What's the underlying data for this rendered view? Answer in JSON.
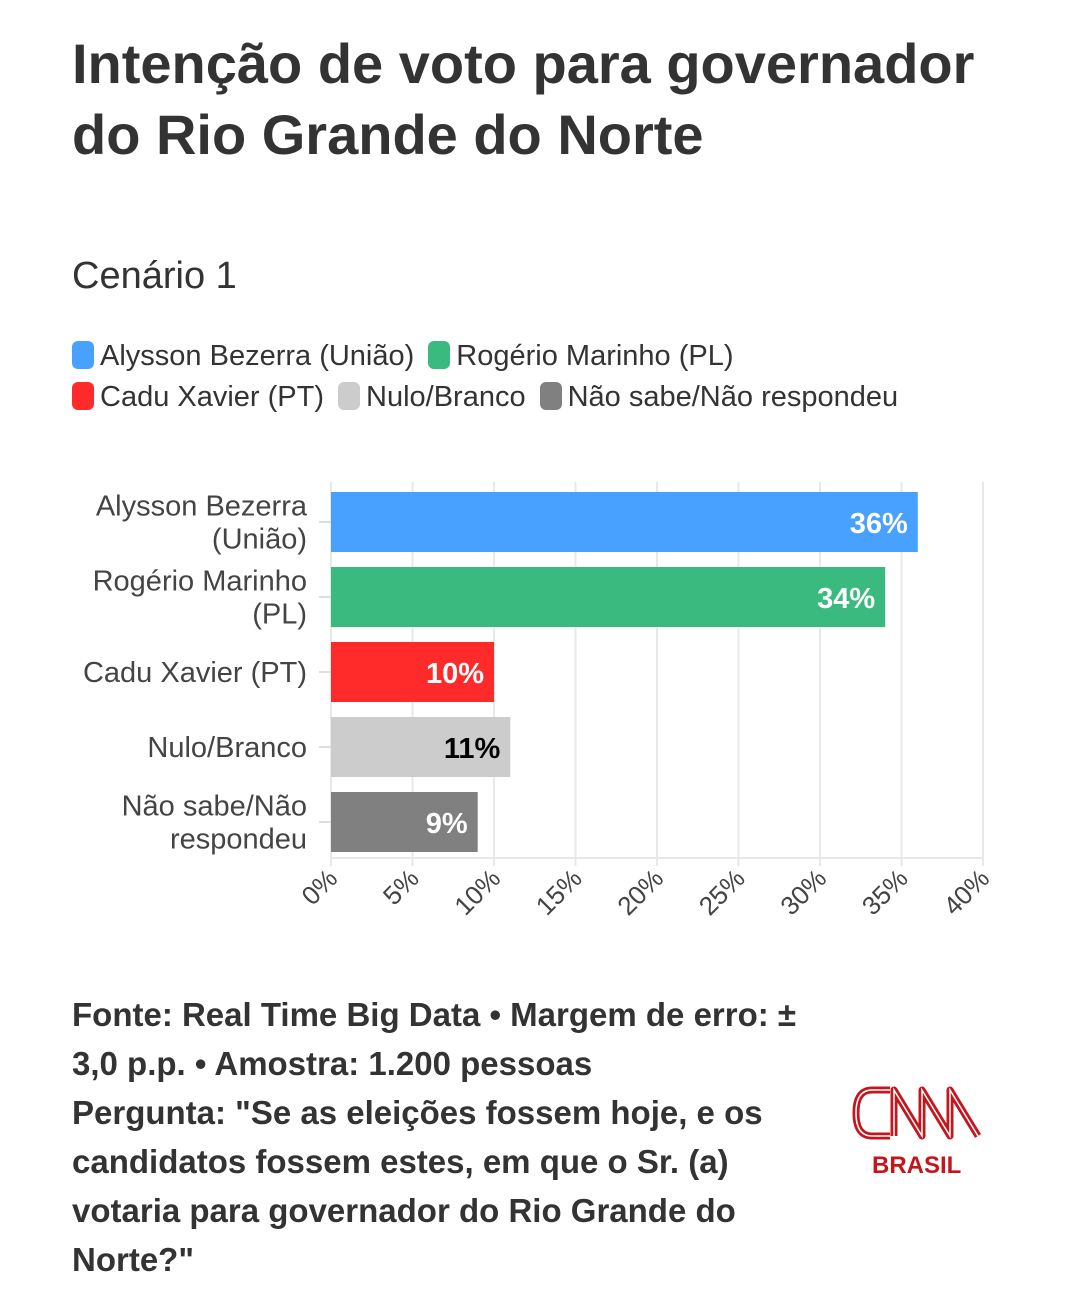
{
  "title": "Intenção de voto para governador do Rio Grande do Norte",
  "subtitle": "Cenário 1",
  "legend": [
    {
      "label": "Alysson Bezerra (União)",
      "color": "#48a0ff"
    },
    {
      "label": "Rogério Marinho (PL)",
      "color": "#3aba7e"
    },
    {
      "label": "Cadu Xavier (PT)",
      "color": "#ff2b2b"
    },
    {
      "label": "Nulo/Branco",
      "color": "#cccccc"
    },
    {
      "label": "Não sabe/Não respondeu",
      "color": "#808080"
    }
  ],
  "chart_data": {
    "type": "bar",
    "orientation": "horizontal",
    "categories": [
      [
        "Alysson Bezerra",
        "(União)"
      ],
      [
        "Rogério Marinho",
        "(PL)"
      ],
      [
        "Cadu Xavier (PT)"
      ],
      [
        "Nulo/Branco"
      ],
      [
        "Não sabe/Não",
        "respondeu"
      ]
    ],
    "values": [
      36,
      34,
      10,
      11,
      9
    ],
    "data_labels": [
      "36%",
      "34%",
      "10%",
      "11%",
      "9%"
    ],
    "colors": [
      "#48a0ff",
      "#3aba7e",
      "#ff2b2b",
      "#cccccc",
      "#808080"
    ],
    "label_colors": [
      "#ffffff",
      "#ffffff",
      "#ffffff",
      "#000000",
      "#ffffff"
    ],
    "xlim": [
      0,
      40
    ],
    "xticks": [
      "0%",
      "5%",
      "10%",
      "15%",
      "20%",
      "25%",
      "30%",
      "35%",
      "40%"
    ],
    "grid": true
  },
  "footer": {
    "source": "Fonte: Real Time Big Data • Margem de erro: ± 3,0 p.p. • Amostra: 1.200 pessoas",
    "question": "Pergunta: \"Se as eleições fossem hoje, e os candidatos fossem estes, em que o Sr. (a) votaria para governador do Rio Grande do Norte?\""
  },
  "logo": {
    "brand": "CNN",
    "sub": "BRASIL"
  }
}
